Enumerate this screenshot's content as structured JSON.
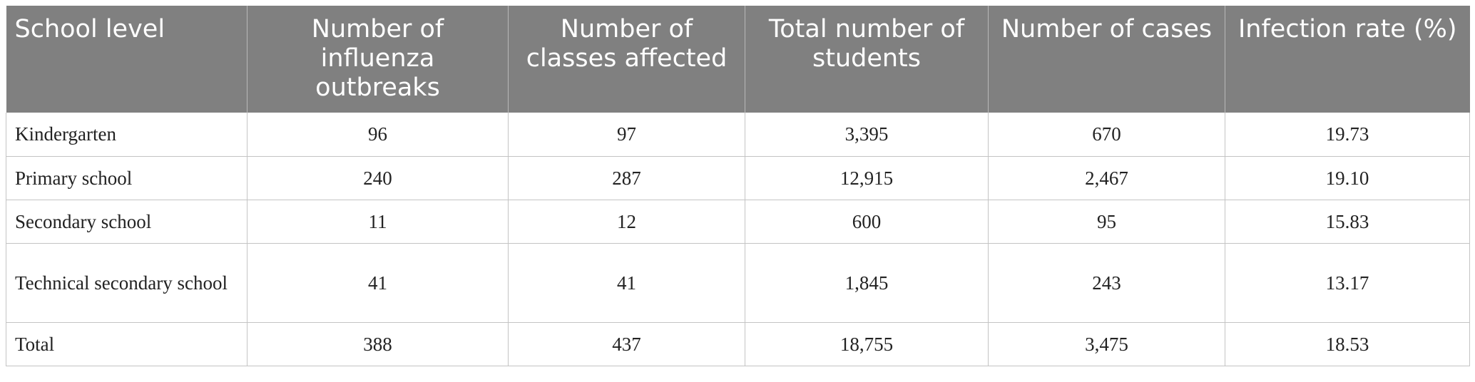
{
  "table": {
    "headers": [
      "School level",
      "Number of influenza outbreaks",
      "Number of classes affected",
      "Total number of students",
      "Number of cases",
      "Infection rate (%)"
    ],
    "rows": [
      [
        "Kindergarten",
        "96",
        "97",
        "3,395",
        "670",
        "19.73"
      ],
      [
        "Primary school",
        "240",
        "287",
        "12,915",
        "2,467",
        "19.10"
      ],
      [
        "Secondary school",
        "11",
        "12",
        "600",
        "95",
        "15.83"
      ],
      [
        "Technical secondary school",
        "41",
        "41",
        "1,845",
        "243",
        "13.17"
      ],
      [
        "Total",
        "388",
        "437",
        "18,755",
        "3,475",
        "18.53"
      ]
    ]
  },
  "colors": {
    "header_background": "#808080",
    "header_text": "#ffffff",
    "grid_lines": "#c4c4c4"
  }
}
